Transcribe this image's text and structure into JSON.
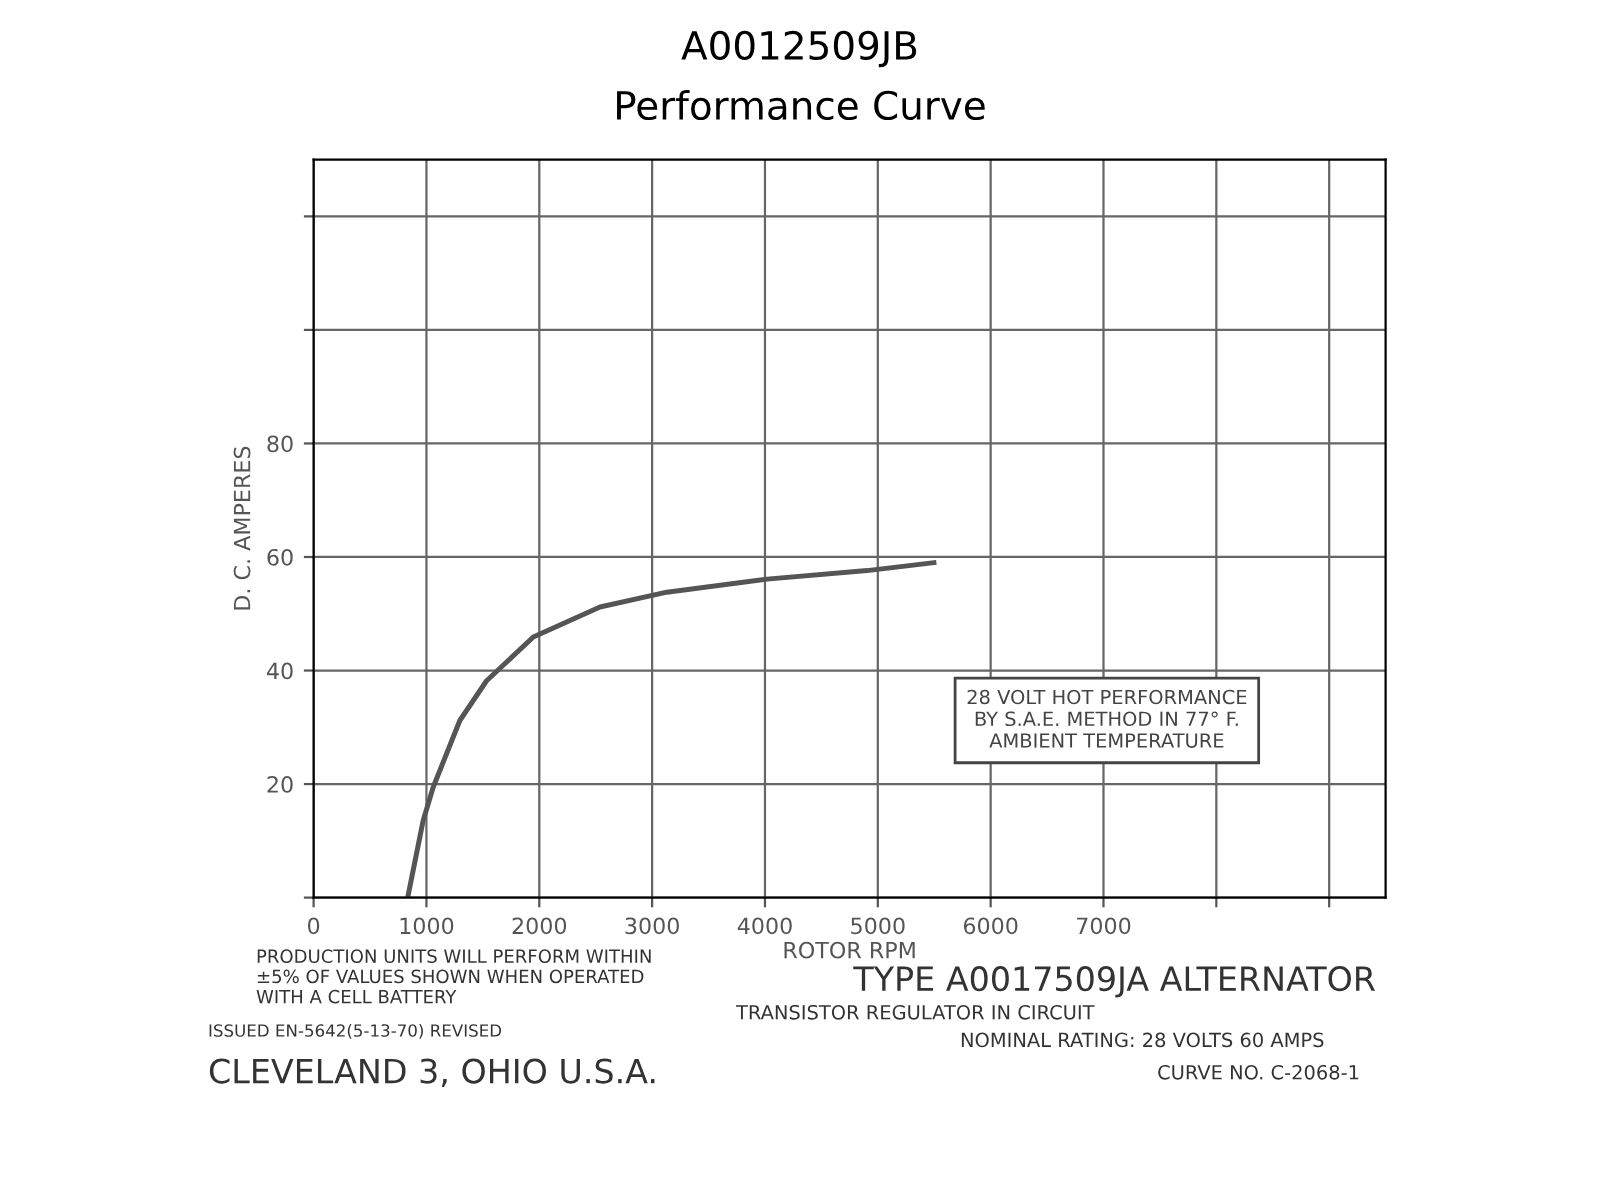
{
  "chart_data": {
    "type": "line",
    "title": "A0012509JB",
    "subtitle": "Performance Curve",
    "xlabel": "ROTOR RPM",
    "ylabel": "D. C. AMPERES",
    "x": [
      834,
      970,
      1059,
      1296,
      1533,
      1947,
      2538,
      3130,
      4018,
      4905,
      5497
    ],
    "series": [
      {
        "color": "#555555",
        "values": [
          0,
          13.5,
          19.4,
          31.2,
          38.2,
          45.9,
          51.2,
          53.8,
          56.1,
          57.6,
          59
        ]
      }
    ],
    "xlim": [
      0,
      9500
    ],
    "ylim": [
      0,
      130
    ],
    "xticks": [
      0,
      1000,
      2000,
      3000,
      4000,
      5000,
      6000,
      7000,
      {
        "value": 8000,
        "label": null
      },
      {
        "value": 9000,
        "label": null
      }
    ],
    "yticks": [
      {
        "value": 0,
        "label": null
      },
      20,
      40,
      60,
      80,
      {
        "value": 100,
        "label": null
      },
      {
        "value": 120,
        "label": null
      }
    ],
    "grid": true,
    "legend": false,
    "marker": "none",
    "line_style": "solid",
    "annotations": [
      "28 VOLT HOT PERFORMANCE\nBY S.A.E. METHOD IN 77° F.\nAMBIENT TEMPERATURE",
      "PRODUCTION UNITS WILL PERFORM WITHIN\n±5% OF VALUES SHOWN WHEN OPERATED\nWITH A CELL BATTERY",
      "TYPE A0017509JA ALTERNATOR",
      "TRANSISTOR REGULATOR IN CIRCUIT",
      "ISSUED EN-5642(5-13-70) REVISED",
      "NOMINAL RATING: 28 VOLTS 60 AMPS",
      "CLEVELAND 3, OHIO U.S.A.",
      "CURVE NO. C-2068-1"
    ]
  }
}
